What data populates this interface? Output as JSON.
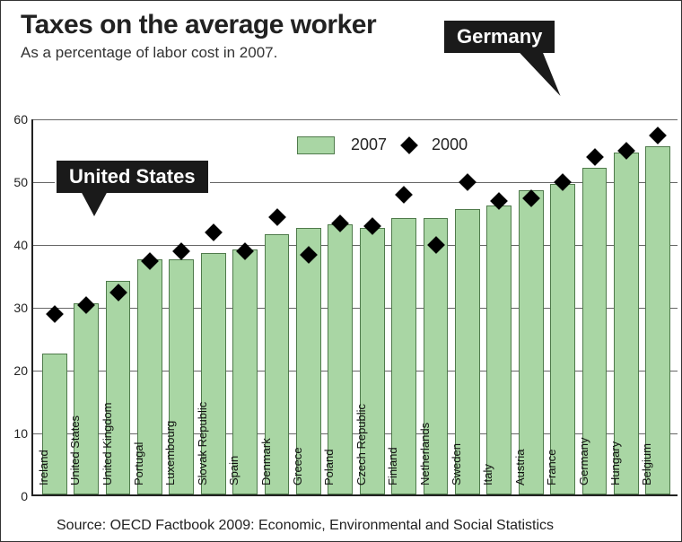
{
  "title": "Taxes on the average worker",
  "subtitle": "As a percentage of labor cost in 2007.",
  "source": "Source: OECD Factbook 2009: Economic, Environmental and Social Statistics",
  "chart": {
    "type": "bar+scatter",
    "background_color": "#ffffff",
    "bar_color": "#a9d6a4",
    "bar_border_color": "#4f7a4b",
    "marker_color": "#000000",
    "grid_color": "#666666",
    "axis_color": "#222222",
    "ylim": [
      0,
      60
    ],
    "ytick_step": 10,
    "yticks": [
      0,
      10,
      20,
      30,
      40,
      50,
      60
    ],
    "bar_width_ratio": 0.78,
    "label_fontsize": 13,
    "categories": [
      "Ireland",
      "United States",
      "United Kingdom",
      "Portugal",
      "Luxembourg",
      "Slovak Republic",
      "Spain",
      "Denmark",
      "Greece",
      "Poland",
      "Czech Republic",
      "Finland",
      "Netherlands",
      "Sweden",
      "Italy",
      "Austria",
      "France",
      "Germany",
      "Hungary",
      "Belgium"
    ],
    "values_2007": [
      22.5,
      30.5,
      34.0,
      37.5,
      37.5,
      38.5,
      39.0,
      41.5,
      42.5,
      43.0,
      42.5,
      44.0,
      44.0,
      45.5,
      46.0,
      48.5,
      49.5,
      52.0,
      54.5,
      55.5
    ],
    "values_2000": [
      29.0,
      30.5,
      32.5,
      37.5,
      39.0,
      42.0,
      39.0,
      44.5,
      38.5,
      43.5,
      43.0,
      48.0,
      40.0,
      50.0,
      47.0,
      47.5,
      50.0,
      54.0,
      55.0,
      57.5
    ],
    "legend": {
      "bar_label": "2007",
      "marker_label": "2000"
    }
  },
  "callouts": {
    "us": {
      "label": "United States",
      "target_index": 1
    },
    "de": {
      "label": "Germany",
      "target_index": 17
    }
  }
}
